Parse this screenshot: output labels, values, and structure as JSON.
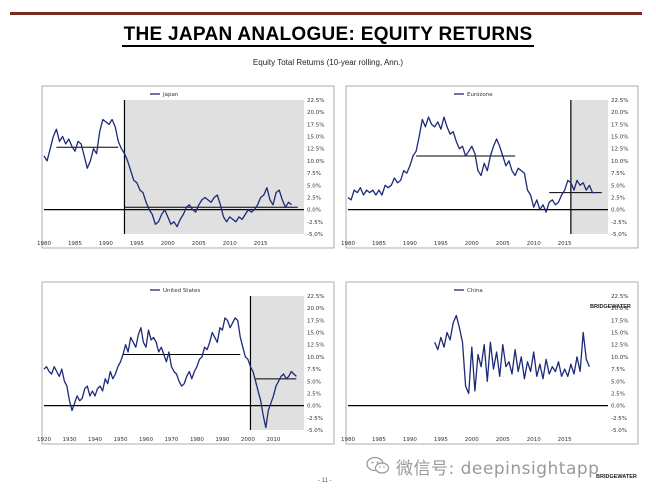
{
  "page": {
    "title": "THE JAPAN ANALOGUE: EQUITY RETURNS",
    "subtitle": "Equity Total Returns (10-year rolling, Ann.)",
    "brand": "BRIDGEWATER",
    "page_number": "- 11 -",
    "watermark": "微信号: deepinsightapp",
    "watermark_icon": "wechat-icon"
  },
  "chart_data": [
    {
      "type": "line",
      "legend": "Japan",
      "ylim": [
        -5,
        22.5
      ],
      "yticks": [
        "22.5%",
        "20.0%",
        "17.5%",
        "15.0%",
        "12.5%",
        "10.0%",
        "7.5%",
        "5.0%",
        "2.5%",
        "0.0%",
        "-2.5%",
        "-5.0%"
      ],
      "xlim": [
        1980,
        2022
      ],
      "xticks": [
        "1980",
        "1985",
        "1990",
        "1995",
        "2000",
        "2005",
        "2010",
        "2015"
      ],
      "shade_from": 1993,
      "vline": 1993,
      "averages": [
        {
          "from": 1982,
          "to": 1992,
          "value": 12.8
        },
        {
          "from": 1993,
          "to": 2021,
          "value": 0.5
        }
      ],
      "x": [
        1980,
        1980.5,
        1981,
        1981.5,
        1982,
        1982.5,
        1983,
        1983.5,
        1984,
        1984.5,
        1985,
        1985.5,
        1986,
        1986.5,
        1987,
        1987.5,
        1988,
        1988.5,
        1989,
        1989.5,
        1990,
        1990.5,
        1991,
        1991.5,
        1992,
        1992.5,
        1993,
        1993.5,
        1994,
        1994.5,
        1995,
        1995.5,
        1996,
        1996.5,
        1997,
        1997.5,
        1998,
        1998.5,
        1999,
        1999.5,
        2000,
        2000.5,
        2001,
        2001.5,
        2002,
        2002.5,
        2003,
        2003.5,
        2004,
        2004.5,
        2005,
        2005.5,
        2006,
        2006.5,
        2007,
        2007.5,
        2008,
        2008.5,
        2009,
        2009.5,
        2010,
        2010.5,
        2011,
        2011.5,
        2012,
        2012.5,
        2013,
        2013.5,
        2014,
        2014.5,
        2015,
        2015.5,
        2016,
        2016.5,
        2017,
        2017.5,
        2018,
        2018.5,
        2019,
        2019.5,
        2020
      ],
      "values": [
        11,
        10,
        12.5,
        15,
        16.5,
        14,
        15,
        13.5,
        14.5,
        13,
        12,
        14,
        13.5,
        11,
        8.5,
        10,
        12.5,
        11.5,
        16,
        18.5,
        18,
        17.5,
        18.5,
        17,
        14,
        12.5,
        11.5,
        10,
        8,
        6,
        5.5,
        4,
        3.5,
        1.5,
        0,
        -1,
        -3,
        -2.5,
        -1,
        0,
        -1.5,
        -3,
        -2.5,
        -3.5,
        -2,
        -1,
        0.5,
        1,
        0,
        -0.5,
        1,
        2,
        2.5,
        2,
        1.5,
        2.5,
        3,
        1,
        -1.5,
        -2.5,
        -1.5,
        -2,
        -2.5,
        -1.5,
        -2,
        -1,
        0,
        -0.5,
        0,
        1,
        2.5,
        3,
        4.5,
        2,
        1,
        3.5,
        4,
        2,
        0.5,
        1.5,
        1
      ]
    },
    {
      "type": "line",
      "legend": "Eurozone",
      "ylim": [
        -5,
        22.5
      ],
      "yticks": [
        "22.5%",
        "20.0%",
        "17.5%",
        "15.0%",
        "12.5%",
        "10.0%",
        "7.5%",
        "5.0%",
        "2.5%",
        "0.0%",
        "-2.5%",
        "-5.0%"
      ],
      "xlim": [
        1980,
        2022
      ],
      "xticks": [
        "1980",
        "1985",
        "1990",
        "1995",
        "2000",
        "2005",
        "2010",
        "2015"
      ],
      "shade_from": 2016,
      "vline": 2016,
      "averages": [
        {
          "from": 1991,
          "to": 2007,
          "value": 11
        },
        {
          "from": 2012.5,
          "to": 2021,
          "value": 3.5
        }
      ],
      "x": [
        1980,
        1980.5,
        1981,
        1981.5,
        1982,
        1982.5,
        1983,
        1983.5,
        1984,
        1984.5,
        1985,
        1985.5,
        1986,
        1986.5,
        1987,
        1987.5,
        1988,
        1988.5,
        1989,
        1989.5,
        1990,
        1990.5,
        1991,
        1991.5,
        1992,
        1992.5,
        1993,
        1993.5,
        1994,
        1994.5,
        1995,
        1995.5,
        1996,
        1996.5,
        1997,
        1997.5,
        1998,
        1998.5,
        1999,
        1999.5,
        2000,
        2000.5,
        2001,
        2001.5,
        2002,
        2002.5,
        2003,
        2003.5,
        2004,
        2004.5,
        2005,
        2005.5,
        2006,
        2006.5,
        2007,
        2007.5,
        2008,
        2008.5,
        2009,
        2009.5,
        2010,
        2010.5,
        2011,
        2011.5,
        2012,
        2012.5,
        2013,
        2013.5,
        2014,
        2014.5,
        2015,
        2015.5,
        2016,
        2016.5,
        2017,
        2017.5,
        2018,
        2018.5,
        2019,
        2019.5,
        2020
      ],
      "values": [
        2.5,
        2,
        4,
        3.5,
        4.5,
        3,
        4,
        3.5,
        4,
        3,
        4,
        3,
        5,
        4.5,
        5,
        6.5,
        5.5,
        6,
        8,
        7.5,
        9,
        11,
        12,
        15,
        18.5,
        17,
        19,
        17.5,
        17,
        18,
        16.5,
        19,
        17,
        15.5,
        16,
        14,
        12.5,
        13,
        11,
        12,
        13,
        11.5,
        8,
        7,
        9.5,
        8,
        11,
        13,
        14.5,
        13,
        11,
        9,
        10,
        8,
        7,
        8.5,
        8,
        7.5,
        4,
        3,
        0.5,
        2,
        0,
        1,
        -0.5,
        1.5,
        2,
        1,
        1.5,
        3,
        4,
        6,
        5.5,
        4,
        6,
        5,
        5.5,
        4,
        5,
        3.5,
        3.5
      ]
    },
    {
      "type": "line",
      "legend": "United States",
      "ylim": [
        -5,
        22.5
      ],
      "yticks": [
        "22.5%",
        "20.0%",
        "17.5%",
        "15.0%",
        "12.5%",
        "10.0%",
        "7.5%",
        "5.0%",
        "2.5%",
        "0.0%",
        "-2.5%",
        "-5.0%"
      ],
      "xlim": [
        1920,
        2022
      ],
      "xticks": [
        "1920",
        "1930",
        "1940",
        "1950",
        "1960",
        "1970",
        "1980",
        "1990",
        "2000",
        "2010"
      ],
      "shade_from": 2001,
      "vline": 2001,
      "averages": [
        {
          "from": 1951,
          "to": 1997,
          "value": 10.5
        },
        {
          "from": 2003,
          "to": 2019,
          "value": 5.5
        }
      ],
      "x": [
        1920,
        1921,
        1922,
        1923,
        1924,
        1925,
        1926,
        1927,
        1928,
        1929,
        1930,
        1931,
        1932,
        1933,
        1934,
        1935,
        1936,
        1937,
        1938,
        1939,
        1940,
        1941,
        1942,
        1943,
        1944,
        1945,
        1946,
        1947,
        1948,
        1949,
        1950,
        1951,
        1952,
        1953,
        1954,
        1955,
        1956,
        1957,
        1958,
        1959,
        1960,
        1961,
        1962,
        1963,
        1964,
        1965,
        1966,
        1967,
        1968,
        1969,
        1970,
        1971,
        1972,
        1973,
        1974,
        1975,
        1976,
        1977,
        1978,
        1979,
        1980,
        1981,
        1982,
        1983,
        1984,
        1985,
        1986,
        1987,
        1988,
        1989,
        1990,
        1991,
        1992,
        1993,
        1994,
        1995,
        1996,
        1997,
        1998,
        1999,
        2000,
        2001,
        2002,
        2003,
        2004,
        2005,
        2006,
        2007,
        2008,
        2009,
        2010,
        2011,
        2012,
        2013,
        2014,
        2015,
        2016,
        2017,
        2018,
        2019
      ],
      "values": [
        7.5,
        8,
        7,
        6.5,
        8,
        7,
        6,
        7.5,
        5,
        4,
        1,
        -1,
        0.5,
        2,
        1,
        1.5,
        3.5,
        4,
        2,
        3,
        2,
        3.5,
        4,
        3,
        5.5,
        4.5,
        7,
        5.5,
        6.5,
        8,
        9,
        10.5,
        12.5,
        11,
        14,
        13,
        12,
        14.5,
        16,
        13,
        12,
        15.5,
        13.5,
        14,
        13,
        11,
        12,
        10.5,
        9,
        11,
        8,
        7,
        6.5,
        5,
        4,
        4.5,
        6,
        7,
        5.5,
        7,
        8,
        9.5,
        10,
        12,
        11.5,
        13,
        15,
        14,
        13,
        16,
        15.5,
        18,
        17.5,
        16,
        17,
        18,
        17.5,
        14,
        12,
        10,
        9.5,
        8,
        7,
        5,
        3,
        1,
        -2,
        -4.5,
        -1,
        0.5,
        2,
        4,
        5,
        6,
        6.5,
        5.5,
        6,
        7,
        6.5,
        6
      ]
    },
    {
      "type": "line",
      "legend": "China",
      "ylim": [
        -5,
        22.5
      ],
      "yticks": [
        "22.5%",
        "20.0%",
        "17.5%",
        "15.0%",
        "12.5%",
        "10.0%",
        "7.5%",
        "5.0%",
        "2.5%",
        "0.0%",
        "-2.5%",
        "-5.0%"
      ],
      "xlim": [
        1980,
        2022
      ],
      "xticks": [
        "1980",
        "1985",
        "1990",
        "1995",
        "2000",
        "2005",
        "2010",
        "2015"
      ],
      "shade_from": null,
      "vline": null,
      "averages": [],
      "x": [
        1994,
        1994.5,
        1995,
        1995.5,
        1996,
        1996.5,
        1997,
        1997.5,
        1998,
        1998.5,
        1999,
        1999.5,
        2000,
        2000.5,
        2001,
        2001.5,
        2002,
        2002.5,
        2003,
        2003.5,
        2004,
        2004.5,
        2005,
        2005.5,
        2006,
        2006.5,
        2007,
        2007.5,
        2008,
        2008.5,
        2009,
        2009.5,
        2010,
        2010.5,
        2011,
        2011.5,
        2012,
        2012.5,
        2013,
        2013.5,
        2014,
        2014.5,
        2015,
        2015.5,
        2016,
        2016.5,
        2017,
        2017.5,
        2018,
        2018.5,
        2019
      ],
      "values": [
        13,
        11.5,
        14,
        12,
        15,
        13.5,
        17,
        18.5,
        16,
        13,
        4,
        2.5,
        12,
        3,
        10.5,
        8,
        12.5,
        5,
        13,
        7.5,
        11,
        6,
        12.5,
        8,
        9,
        6.5,
        11.5,
        7,
        10,
        5.5,
        9,
        7,
        11,
        6,
        8.5,
        5.5,
        9.5,
        6.5,
        8,
        7,
        9,
        6,
        7.5,
        6,
        8.5,
        6.5,
        10,
        7,
        15,
        9.5,
        8
      ]
    }
  ]
}
